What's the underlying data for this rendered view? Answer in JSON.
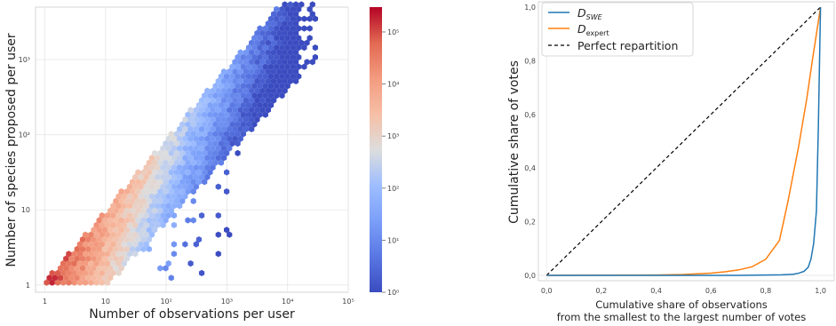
{
  "chart_data": [
    {
      "type": "heatmap",
      "subtype": "hexbin",
      "xlabel": "Number of observations per user",
      "ylabel": "Number of species proposed per user",
      "xscale": "log",
      "yscale": "log",
      "xlim": [
        0.7,
        100000
      ],
      "ylim": [
        0.8,
        5000
      ],
      "xticks": [
        {
          "v": 1,
          "t": "1"
        },
        {
          "v": 10,
          "t": "10"
        },
        {
          "v": 100,
          "t": "10²"
        },
        {
          "v": 1000,
          "t": "10³"
        },
        {
          "v": 10000,
          "t": "10⁴"
        },
        {
          "v": 100000,
          "t": "10⁵"
        }
      ],
      "yticks": [
        {
          "v": 1,
          "t": "1"
        },
        {
          "v": 10,
          "t": "10"
        },
        {
          "v": 100,
          "t": "10²"
        },
        {
          "v": 1000,
          "t": "10³"
        }
      ],
      "colorbar": {
        "scale": "log",
        "range": [
          1,
          300000
        ],
        "ticks": [
          {
            "v": 1,
            "t": "10⁰"
          },
          {
            "v": 10,
            "t": "10¹"
          },
          {
            "v": 100,
            "t": "10²"
          },
          {
            "v": 1000,
            "t": "10³"
          },
          {
            "v": 10000,
            "t": "10⁴"
          },
          {
            "v": 100000,
            "t": "10⁵"
          }
        ],
        "colormap": "coolwarm"
      },
      "grid": true
    },
    {
      "type": "line",
      "xlabel": "Cumulative share of observations",
      "xlabel2": "from the smallest to the largest number of votes",
      "ylabel": "Cumulative share of votes",
      "xlim": [
        -0.03,
        1.05
      ],
      "ylim": [
        -0.02,
        1.02
      ],
      "xticks": [
        {
          "v": 0,
          "t": "0,0"
        },
        {
          "v": 0.2,
          "t": "0,2"
        },
        {
          "v": 0.4,
          "t": "0,4"
        },
        {
          "v": 0.6,
          "t": "0,6"
        },
        {
          "v": 0.8,
          "t": "0,8"
        },
        {
          "v": 1.0,
          "t": "1,0"
        }
      ],
      "yticks": [
        {
          "v": 0,
          "t": "0,0"
        },
        {
          "v": 0.2,
          "t": "0,2"
        },
        {
          "v": 0.4,
          "t": "0,4"
        },
        {
          "v": 0.6,
          "t": "0,6"
        },
        {
          "v": 0.8,
          "t": "0,8"
        },
        {
          "v": 1.0,
          "t": "1,0"
        }
      ],
      "legend_position": "top-left",
      "grid": true,
      "series": [
        {
          "name": "D",
          "name_sub": "SWE",
          "color": "#1f77b4",
          "dash": "solid",
          "x": [
            0,
            0.7,
            0.8,
            0.86,
            0.9,
            0.92,
            0.94,
            0.955,
            0.965,
            0.975,
            0.985,
            0.992,
            1.0
          ],
          "y": [
            0,
            0.0,
            0.001,
            0.002,
            0.004,
            0.008,
            0.015,
            0.03,
            0.06,
            0.12,
            0.24,
            0.55,
            1.0
          ]
        },
        {
          "name": "D",
          "name_sub": "expert",
          "color": "#ff7f0e",
          "dash": "solid",
          "x": [
            0,
            0.4,
            0.5,
            0.6,
            0.65,
            0.7,
            0.75,
            0.8,
            0.85,
            0.88,
            0.92,
            0.95,
            0.97,
            0.985,
            1.0
          ],
          "y": [
            0,
            0.001,
            0.003,
            0.008,
            0.013,
            0.02,
            0.032,
            0.06,
            0.13,
            0.27,
            0.48,
            0.66,
            0.8,
            0.9,
            1.0
          ]
        },
        {
          "name": "Perfect repartition",
          "color": "#000000",
          "dash": "dashed",
          "x": [
            0,
            1
          ],
          "y": [
            0,
            1
          ]
        }
      ]
    }
  ]
}
